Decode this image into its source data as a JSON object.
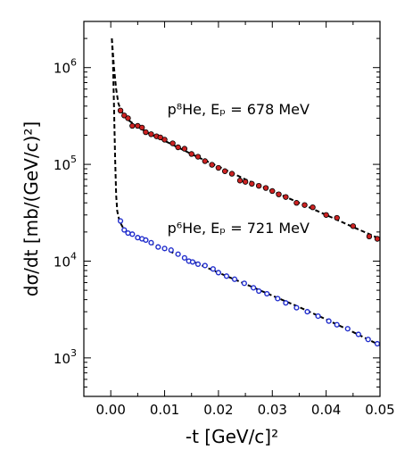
{
  "chart_data": {
    "type": "scatter",
    "xlabel": "-t  [GeV/c]²",
    "ylabel": "dσ/dt  [mb/(GeV/c)²]",
    "xlim": [
      -0.005,
      0.05
    ],
    "ylim": [
      400,
      3000000
    ],
    "yscale": "log",
    "x_ticks": [
      {
        "v": 0.0,
        "label": "0.00"
      },
      {
        "v": 0.01,
        "label": "0.01"
      },
      {
        "v": 0.02,
        "label": "0.02"
      },
      {
        "v": 0.03,
        "label": "0.03"
      },
      {
        "v": 0.04,
        "label": "0.04"
      },
      {
        "v": 0.05,
        "label": "0.05"
      }
    ],
    "y_ticks": [
      {
        "v": 1000,
        "base": "10",
        "exp": "3"
      },
      {
        "v": 10000,
        "base": "10",
        "exp": "4"
      },
      {
        "v": 100000,
        "base": "10",
        "exp": "5"
      },
      {
        "v": 1000000,
        "base": "10",
        "exp": "6"
      }
    ],
    "annotations": [
      {
        "text": "p⁸He,  Eₚ = 678 MeV",
        "x": 0.0105,
        "y": 330000
      },
      {
        "text": "p⁶He,  Eₚ = 721 MeV",
        "x": 0.0105,
        "y": 19500
      }
    ],
    "series": [
      {
        "color": "#cc2222",
        "marker": "filled-circle",
        "points": [
          [
            0.0018,
            360000
          ],
          [
            0.0025,
            320000
          ],
          [
            0.0032,
            300000
          ],
          [
            0.004,
            250000
          ],
          [
            0.005,
            250000
          ],
          [
            0.0058,
            240000
          ],
          [
            0.0065,
            215000
          ],
          [
            0.0075,
            205000
          ],
          [
            0.0085,
            195000
          ],
          [
            0.0092,
            190000
          ],
          [
            0.01,
            180000
          ],
          [
            0.0115,
            165000
          ],
          [
            0.0125,
            150000
          ],
          [
            0.0137,
            145000
          ],
          [
            0.015,
            128000
          ],
          [
            0.0162,
            120000
          ],
          [
            0.0175,
            108000
          ],
          [
            0.0188,
            99000
          ],
          [
            0.02,
            92000
          ],
          [
            0.0212,
            85000
          ],
          [
            0.0225,
            80000
          ],
          [
            0.024,
            68000
          ],
          [
            0.025,
            66000
          ],
          [
            0.0262,
            63000
          ],
          [
            0.0275,
            60000
          ],
          [
            0.0288,
            57000
          ],
          [
            0.03,
            53000
          ],
          [
            0.0312,
            49000
          ],
          [
            0.0325,
            46000
          ],
          [
            0.0345,
            40000
          ],
          [
            0.036,
            38000
          ],
          [
            0.0375,
            36000
          ],
          [
            0.04,
            30000
          ],
          [
            0.042,
            28000
          ],
          [
            0.045,
            23000
          ],
          [
            0.048,
            18000
          ],
          [
            0.0495,
            17000
          ]
        ]
      },
      {
        "color": "#1f2ccc",
        "marker": "open-circle",
        "points": [
          [
            0.0018,
            26000
          ],
          [
            0.0025,
            21000
          ],
          [
            0.0032,
            19500
          ],
          [
            0.004,
            19000
          ],
          [
            0.005,
            17500
          ],
          [
            0.0058,
            17000
          ],
          [
            0.0065,
            16500
          ],
          [
            0.0075,
            15500
          ],
          [
            0.0088,
            14000
          ],
          [
            0.01,
            13500
          ],
          [
            0.0112,
            13000
          ],
          [
            0.0125,
            11800
          ],
          [
            0.0137,
            10800
          ],
          [
            0.0145,
            10000
          ],
          [
            0.0152,
            9800
          ],
          [
            0.0162,
            9300
          ],
          [
            0.0175,
            9000
          ],
          [
            0.019,
            8300
          ],
          [
            0.02,
            7600
          ],
          [
            0.0215,
            7000
          ],
          [
            0.023,
            6500
          ],
          [
            0.0248,
            5900
          ],
          [
            0.0265,
            5300
          ],
          [
            0.0275,
            4900
          ],
          [
            0.029,
            4600
          ],
          [
            0.031,
            4100
          ],
          [
            0.0325,
            3700
          ],
          [
            0.0345,
            3300
          ],
          [
            0.0365,
            3000
          ],
          [
            0.0385,
            2700
          ],
          [
            0.0405,
            2400
          ],
          [
            0.042,
            2200
          ],
          [
            0.044,
            2000
          ],
          [
            0.046,
            1750
          ],
          [
            0.0478,
            1550
          ],
          [
            0.0495,
            1400
          ]
        ]
      }
    ],
    "fit_curves": [
      {
        "style": "dashed",
        "color": "#000000",
        "points": [
          [
            0.0002,
            2000000
          ],
          [
            0.0006,
            1000000
          ],
          [
            0.001,
            600000
          ],
          [
            0.0014,
            430000
          ],
          [
            0.0018,
            370000
          ],
          [
            0.0025,
            320000
          ],
          [
            0.0035,
            280000
          ],
          [
            0.005,
            245000
          ],
          [
            0.007,
            210000
          ],
          [
            0.01,
            175000
          ],
          [
            0.013,
            145000
          ],
          [
            0.016,
            120000
          ],
          [
            0.02,
            95000
          ],
          [
            0.025,
            70000
          ],
          [
            0.03,
            53000
          ],
          [
            0.035,
            40000
          ],
          [
            0.04,
            30000
          ],
          [
            0.045,
            22500
          ],
          [
            0.05,
            17000
          ]
        ]
      },
      {
        "style": "dashed",
        "color": "#000000",
        "points": [
          [
            0.0002,
            2000000
          ],
          [
            0.0004,
            1200000
          ],
          [
            0.0006,
            400000
          ],
          [
            0.0008,
            120000
          ],
          [
            0.001,
            48000
          ],
          [
            0.0012,
            33000
          ],
          [
            0.0016,
            26000
          ],
          [
            0.0025,
            21000
          ],
          [
            0.004,
            18500
          ],
          [
            0.006,
            16500
          ],
          [
            0.008,
            14800
          ],
          [
            0.01,
            13300
          ],
          [
            0.013,
            11300
          ],
          [
            0.016,
            9500
          ],
          [
            0.02,
            7600
          ],
          [
            0.025,
            5800
          ],
          [
            0.03,
            4400
          ],
          [
            0.035,
            3350
          ],
          [
            0.04,
            2500
          ],
          [
            0.045,
            1850
          ],
          [
            0.05,
            1350
          ]
        ]
      }
    ]
  }
}
